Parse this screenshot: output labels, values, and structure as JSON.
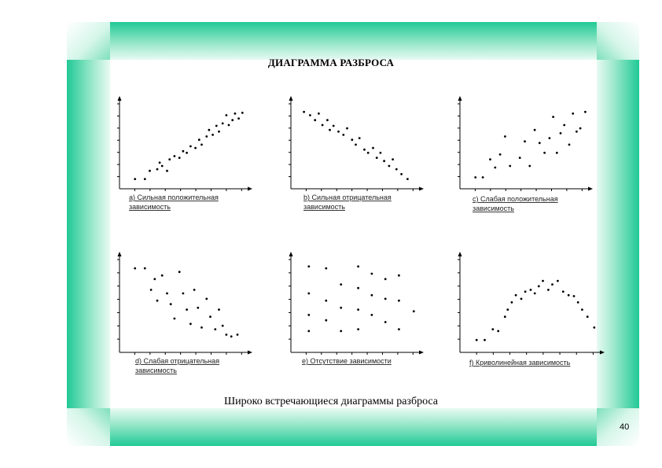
{
  "title": "ДИАГРАММА РАЗБРОСА",
  "caption": "Широко встречающиеся диаграммы разброса",
  "page_number": "40",
  "colors": {
    "frame_accent": "#20c995",
    "dots": "#000000"
  },
  "chart_data": [
    {
      "type": "scatter",
      "label_lines": [
        "а) Сильная положительная",
        "зависимость"
      ],
      "xlim": [
        0,
        10
      ],
      "ylim": [
        0,
        10
      ],
      "points": [
        [
          1,
          1
        ],
        [
          1.8,
          1
        ],
        [
          2.2,
          2
        ],
        [
          2.8,
          2.2
        ],
        [
          3,
          3
        ],
        [
          3.2,
          2.6
        ],
        [
          3.6,
          2
        ],
        [
          3.8,
          3.4
        ],
        [
          4.2,
          3.8
        ],
        [
          4.6,
          3.6
        ],
        [
          4.9,
          4.4
        ],
        [
          5.2,
          4.2
        ],
        [
          5.5,
          5
        ],
        [
          5.9,
          4.8
        ],
        [
          6.2,
          5.8
        ],
        [
          6.4,
          5.2
        ],
        [
          6.8,
          6.2
        ],
        [
          7,
          7
        ],
        [
          7.3,
          6.4
        ],
        [
          7.6,
          7.5
        ],
        [
          7.8,
          6.8
        ],
        [
          8.1,
          7.8
        ],
        [
          8.4,
          8.8
        ],
        [
          8.6,
          7.6
        ],
        [
          8.9,
          8.2
        ],
        [
          9.1,
          9
        ],
        [
          9.4,
          8.4
        ],
        [
          9.7,
          9.1
        ]
      ]
    },
    {
      "type": "scatter",
      "label_lines": [
        "b) Сильная отрицательная",
        "зависимость"
      ],
      "xlim": [
        0,
        10
      ],
      "ylim": [
        0,
        10
      ],
      "points": [
        [
          0.8,
          9.2
        ],
        [
          1.3,
          8.8
        ],
        [
          1.7,
          8.2
        ],
        [
          2,
          9
        ],
        [
          2.3,
          7.6
        ],
        [
          2.7,
          8.2
        ],
        [
          2.9,
          7
        ],
        [
          3.2,
          7.5
        ],
        [
          3.6,
          6.8
        ],
        [
          4,
          6.4
        ],
        [
          4.3,
          7.2
        ],
        [
          4.7,
          5.8
        ],
        [
          5,
          5.2
        ],
        [
          5.3,
          6
        ],
        [
          5.7,
          4.6
        ],
        [
          6,
          4.2
        ],
        [
          6.4,
          4.8
        ],
        [
          6.7,
          3.6
        ],
        [
          7,
          4.2
        ],
        [
          7.3,
          3.2
        ],
        [
          7.7,
          2.6
        ],
        [
          8,
          3.4
        ],
        [
          8.3,
          2.2
        ],
        [
          8.7,
          1.6
        ],
        [
          9.2,
          1
        ]
      ]
    },
    {
      "type": "scatter",
      "label_lines": [
        "с) Слабая положительная",
        "зависимость"
      ],
      "xlim": [
        0,
        10
      ],
      "ylim": [
        0,
        10
      ],
      "points": [
        [
          1,
          1.2
        ],
        [
          1.6,
          1.2
        ],
        [
          2.2,
          3.4
        ],
        [
          2.6,
          2.4
        ],
        [
          3,
          4
        ],
        [
          3.4,
          6.2
        ],
        [
          3.8,
          2.6
        ],
        [
          4.6,
          3.6
        ],
        [
          5,
          5.6
        ],
        [
          5.4,
          2.6
        ],
        [
          5.8,
          7
        ],
        [
          6.2,
          5.4
        ],
        [
          6.6,
          4.2
        ],
        [
          7,
          6
        ],
        [
          7.3,
          8.6
        ],
        [
          7.6,
          4.2
        ],
        [
          7.9,
          6.6
        ],
        [
          8.2,
          7.6
        ],
        [
          8.6,
          5.2
        ],
        [
          8.9,
          9
        ],
        [
          9.2,
          6.8
        ],
        [
          9.5,
          7.2
        ],
        [
          9.9,
          9.2
        ]
      ]
    },
    {
      "type": "scatter",
      "label_lines": [
        "d) Слабая отрицательная",
        "зависимость"
      ],
      "xlim": [
        0,
        10
      ],
      "ylim": [
        0,
        10
      ],
      "points": [
        [
          1,
          9.2
        ],
        [
          1.8,
          9.2
        ],
        [
          2.3,
          6.8
        ],
        [
          2.6,
          8
        ],
        [
          2.8,
          5.6
        ],
        [
          3.2,
          8.4
        ],
        [
          3.6,
          6.4
        ],
        [
          3.9,
          5.2
        ],
        [
          4.2,
          3.6
        ],
        [
          4.6,
          8.8
        ],
        [
          4.9,
          6.4
        ],
        [
          5.2,
          4.6
        ],
        [
          5.5,
          3
        ],
        [
          5.8,
          6.8
        ],
        [
          6.1,
          4.8
        ],
        [
          6.4,
          2.6
        ],
        [
          6.8,
          5.8
        ],
        [
          7.1,
          3.8
        ],
        [
          7.5,
          2.4
        ],
        [
          7.8,
          4.6
        ],
        [
          8.1,
          2.8
        ],
        [
          8.4,
          1.8
        ],
        [
          8.8,
          1.6
        ],
        [
          9.3,
          1.8
        ]
      ]
    },
    {
      "type": "scatter",
      "label_lines": [
        "е) Отсутствие зависимости"
      ],
      "xlim": [
        0,
        10
      ],
      "ylim": [
        0,
        10
      ],
      "points": [
        [
          1.2,
          9.4
        ],
        [
          1.2,
          6.4
        ],
        [
          1.2,
          4
        ],
        [
          1.2,
          2.2
        ],
        [
          2.6,
          9.2
        ],
        [
          2.6,
          5.6
        ],
        [
          2.6,
          3.4
        ],
        [
          3.8,
          7.4
        ],
        [
          3.8,
          4.8
        ],
        [
          3.8,
          2.2
        ],
        [
          5.2,
          9.4
        ],
        [
          5.2,
          7
        ],
        [
          5.2,
          4.6
        ],
        [
          5.2,
          2.4
        ],
        [
          6.3,
          8.6
        ],
        [
          6.3,
          6.2
        ],
        [
          6.3,
          4
        ],
        [
          7.4,
          8
        ],
        [
          7.4,
          5.8
        ],
        [
          7.4,
          3.2
        ],
        [
          8.5,
          8.4
        ],
        [
          8.5,
          5.6
        ],
        [
          8.5,
          2.4
        ],
        [
          9.7,
          4.4
        ]
      ]
    },
    {
      "type": "scatter",
      "label_lines": [
        "f) Криволинейная зависимость"
      ],
      "xlim": [
        0,
        10
      ],
      "ylim": [
        0,
        10
      ],
      "points": [
        [
          1,
          1.2
        ],
        [
          1.6,
          1.2
        ],
        [
          2.2,
          2.4
        ],
        [
          2.6,
          2.2
        ],
        [
          3.1,
          3.8
        ],
        [
          3.3,
          4.6
        ],
        [
          3.6,
          5.4
        ],
        [
          3.9,
          6.2
        ],
        [
          4.3,
          5.8
        ],
        [
          4.6,
          6.6
        ],
        [
          5,
          6.8
        ],
        [
          5.3,
          6.4
        ],
        [
          5.6,
          7.2
        ],
        [
          5.9,
          7.8
        ],
        [
          6.3,
          6.8
        ],
        [
          6.6,
          7.4
        ],
        [
          7,
          7.8
        ],
        [
          7.4,
          6.6
        ],
        [
          7.8,
          6.2
        ],
        [
          8.2,
          6.1
        ],
        [
          8.5,
          5.4
        ],
        [
          8.8,
          4.6
        ],
        [
          9.2,
          3.8
        ],
        [
          9.7,
          2.6
        ]
      ]
    }
  ]
}
